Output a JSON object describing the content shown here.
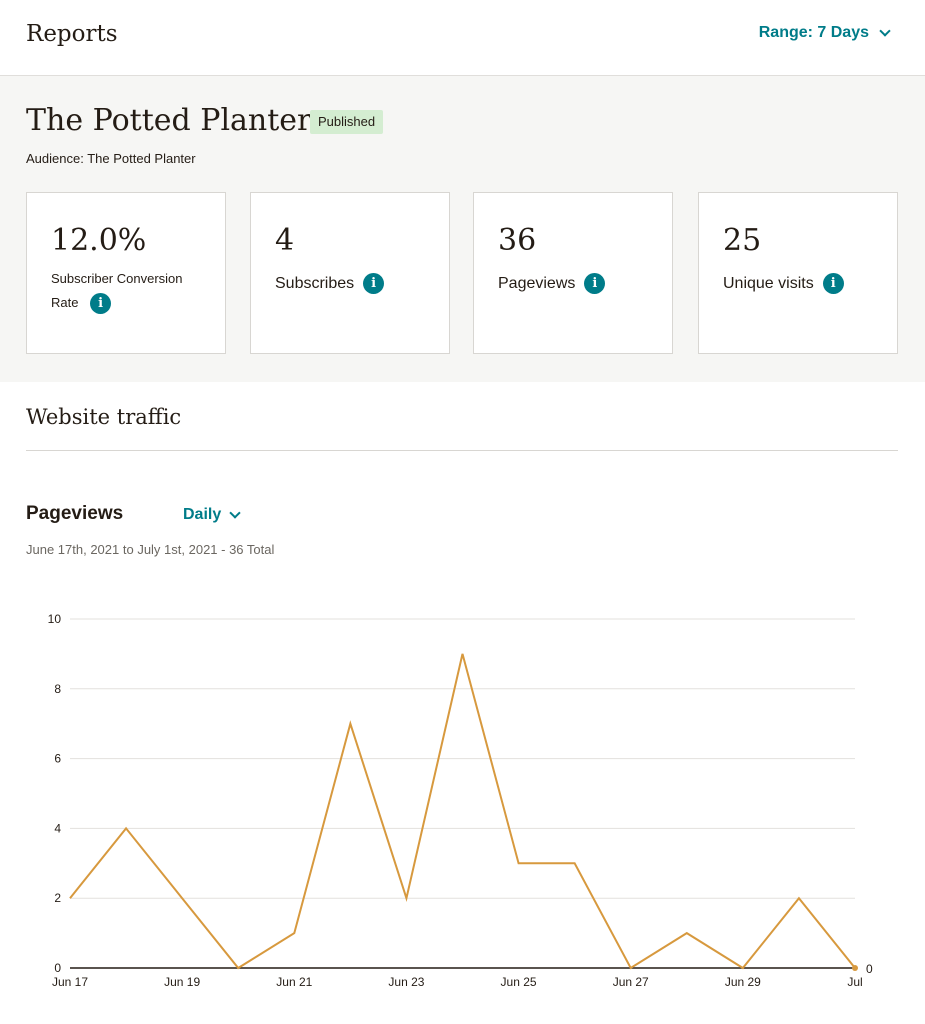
{
  "header": {
    "title": "Reports",
    "range_label": "Range: 7 Days"
  },
  "hero": {
    "name": "The Potted Planter",
    "status": "Published",
    "audience": "Audience: The Potted Planter"
  },
  "stats": [
    {
      "value": "12.0%",
      "label": "Subscriber Conversion Rate"
    },
    {
      "value": "4",
      "label": "Subscribes"
    },
    {
      "value": "36",
      "label": "Pageviews"
    },
    {
      "value": "25",
      "label": "Unique visits"
    }
  ],
  "traffic": {
    "title": "Website traffic",
    "chart_title": "Pageviews",
    "granularity": "Daily",
    "subtitle": "June 17th, 2021 to July 1st, 2021 - 36 Total"
  },
  "colors": {
    "accent": "#007c89",
    "line": "#d7993e",
    "badge_bg": "#d4edd1"
  },
  "chart_data": {
    "type": "line",
    "x": [
      "Jun 17",
      "Jun 18",
      "Jun 19",
      "Jun 20",
      "Jun 21",
      "Jun 22",
      "Jun 23",
      "Jun 24",
      "Jun 25",
      "Jun 26",
      "Jun 27",
      "Jun 28",
      "Jun 29",
      "Jun 30",
      "Jul 1"
    ],
    "x_tick_labels": [
      "Jun 17",
      "Jun 19",
      "Jun 21",
      "Jun 23",
      "Jun 25",
      "Jun 27",
      "Jun 29",
      "Jul"
    ],
    "x_tick_indices": [
      0,
      2,
      4,
      6,
      8,
      10,
      12,
      14
    ],
    "series": [
      {
        "name": "",
        "values": [
          2,
          4,
          2,
          0,
          1,
          7,
          2,
          9,
          3,
          3,
          0,
          1,
          0,
          2,
          0
        ]
      }
    ],
    "y_ticks": [
      "0",
      "2",
      "4",
      "6",
      "8",
      "10"
    ],
    "ylim": [
      0,
      10
    ],
    "end_label": "0",
    "grid": true
  }
}
